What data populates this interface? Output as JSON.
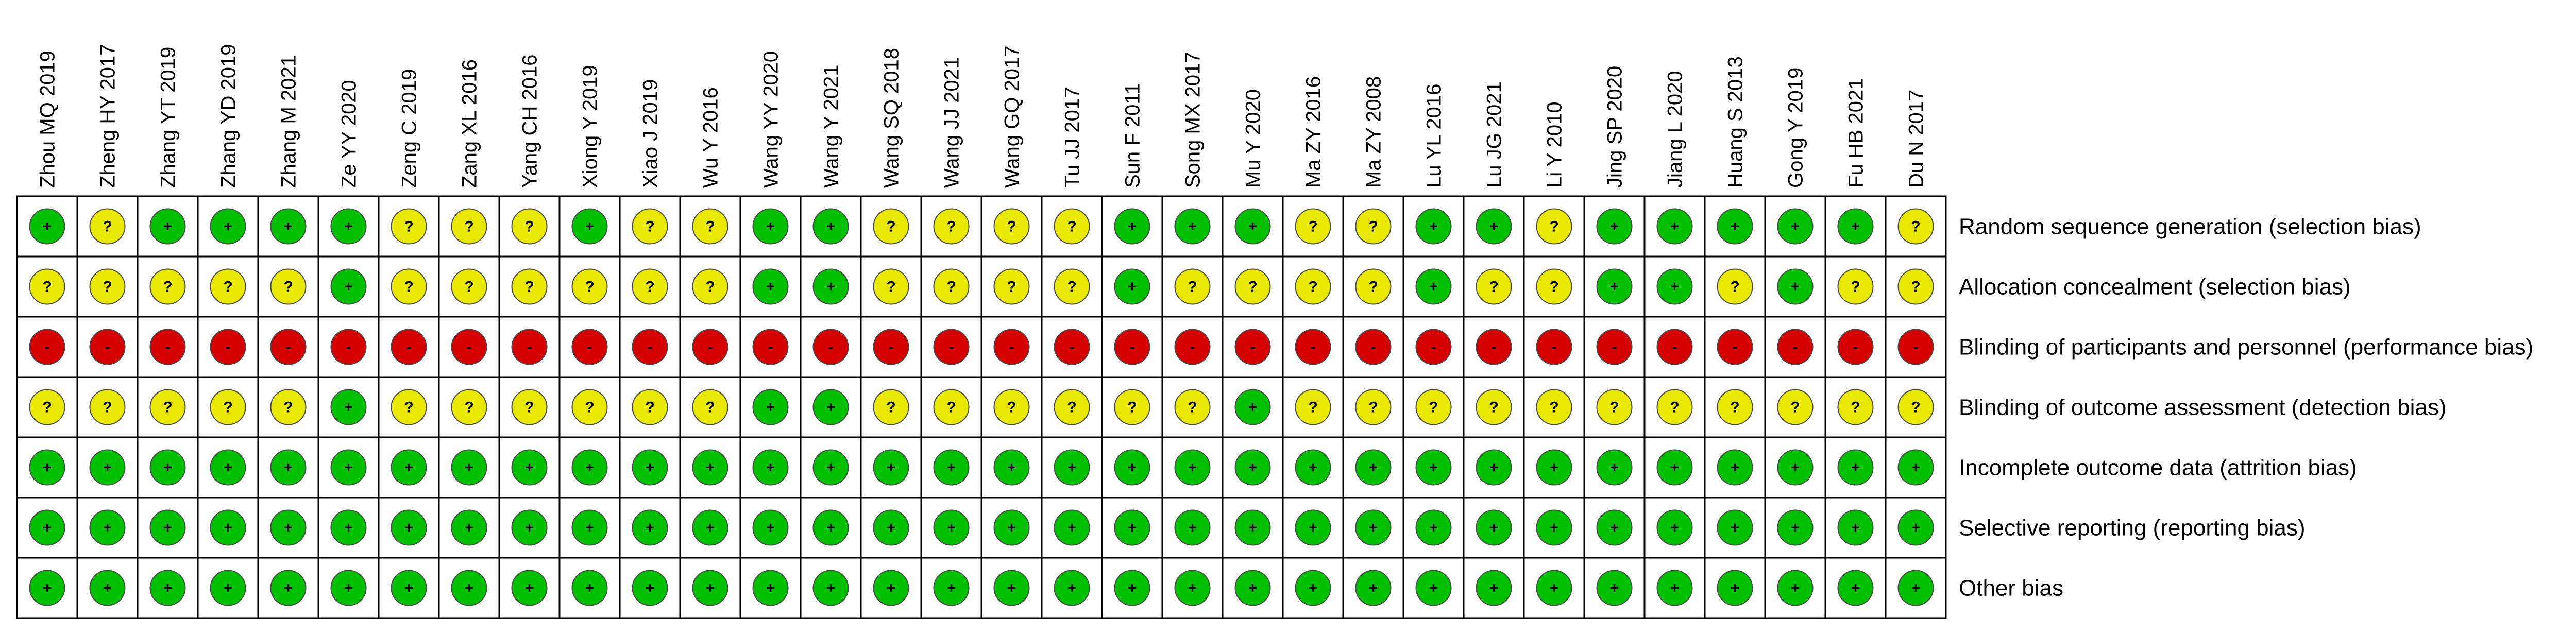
{
  "chart_data": {
    "type": "table",
    "studies": [
      "Zhou MQ 2019",
      "Zheng HY 2017",
      "Zhang YT 2019",
      "Zhang YD 2019",
      "Zhang M 2021",
      "Ze YY 2020",
      "Zeng C 2019",
      "Zang XL 2016",
      "Yang CH 2016",
      "Xiong Y 2019",
      "Xiao J 2019",
      "Wu Y 2016",
      "Wang YY 2020",
      "Wang Y 2021",
      "Wang SQ 2018",
      "Wang JJ 2021",
      "Wang GQ 2017",
      "Tu JJ 2017",
      "Sun F 2011",
      "Song MX 2017",
      "Mu Y 2020",
      "Ma ZY 2016",
      "Ma ZY 2008",
      "Lu YL 2016",
      "Lu JG 2021",
      "Li Y 2010",
      "Jing SP 2020",
      "Jiang L 2020",
      "Huang S 2013",
      "Gong Y 2019",
      "Fu HB 2021",
      "Du N 2017"
    ],
    "domains": [
      "Random sequence generation (selection bias)",
      "Allocation concealment (selection bias)",
      "Blinding of participants and personnel (performance bias)",
      "Blinding of outcome assessment (detection bias)",
      "Incomplete outcome data (attrition bias)",
      "Selective reporting (reporting bias)",
      "Other bias"
    ],
    "judgements": [
      [
        "+",
        "?",
        "+",
        "+",
        "+",
        "+",
        "?",
        "?",
        "?",
        "+",
        "?",
        "?",
        "+",
        "+",
        "?",
        "?",
        "?",
        "?",
        "+",
        "+",
        "+",
        "?",
        "?",
        "+",
        "+",
        "?",
        "+",
        "+",
        "+",
        "+",
        "+",
        "?"
      ],
      [
        "?",
        "?",
        "?",
        "?",
        "?",
        "+",
        "?",
        "?",
        "?",
        "?",
        "?",
        "?",
        "+",
        "+",
        "?",
        "?",
        "?",
        "?",
        "+",
        "?",
        "?",
        "?",
        "?",
        "+",
        "?",
        "?",
        "+",
        "+",
        "?",
        "+",
        "?",
        "?"
      ],
      [
        "-",
        "-",
        "-",
        "-",
        "-",
        "-",
        "-",
        "-",
        "-",
        "-",
        "-",
        "-",
        "-",
        "-",
        "-",
        "-",
        "-",
        "-",
        "-",
        "-",
        "-",
        "-",
        "-",
        "-",
        "-",
        "-",
        "-",
        "-",
        "-",
        "-",
        "-",
        "-"
      ],
      [
        "?",
        "?",
        "?",
        "?",
        "?",
        "+",
        "?",
        "?",
        "?",
        "?",
        "?",
        "?",
        "+",
        "+",
        "?",
        "?",
        "?",
        "?",
        "?",
        "?",
        "+",
        "?",
        "?",
        "?",
        "?",
        "?",
        "?",
        "?",
        "?",
        "?",
        "?",
        "?"
      ],
      [
        "+",
        "+",
        "+",
        "+",
        "+",
        "+",
        "+",
        "+",
        "+",
        "+",
        "+",
        "+",
        "+",
        "+",
        "+",
        "+",
        "+",
        "+",
        "+",
        "+",
        "+",
        "+",
        "+",
        "+",
        "+",
        "+",
        "+",
        "+",
        "+",
        "+",
        "+",
        "+"
      ],
      [
        "+",
        "+",
        "+",
        "+",
        "+",
        "+",
        "+",
        "+",
        "+",
        "+",
        "+",
        "+",
        "+",
        "+",
        "+",
        "+",
        "+",
        "+",
        "+",
        "+",
        "+",
        "+",
        "+",
        "+",
        "+",
        "+",
        "+",
        "+",
        "+",
        "+",
        "+",
        "+"
      ],
      [
        "+",
        "+",
        "+",
        "+",
        "+",
        "+",
        "+",
        "+",
        "+",
        "+",
        "+",
        "+",
        "+",
        "+",
        "+",
        "+",
        "+",
        "+",
        "+",
        "+",
        "+",
        "+",
        "+",
        "+",
        "+",
        "+",
        "+",
        "+",
        "+",
        "+",
        "+",
        "+"
      ]
    ],
    "colors": {
      "+": "#00c000",
      "?": "#e8e800",
      "-": "#d40000"
    }
  }
}
